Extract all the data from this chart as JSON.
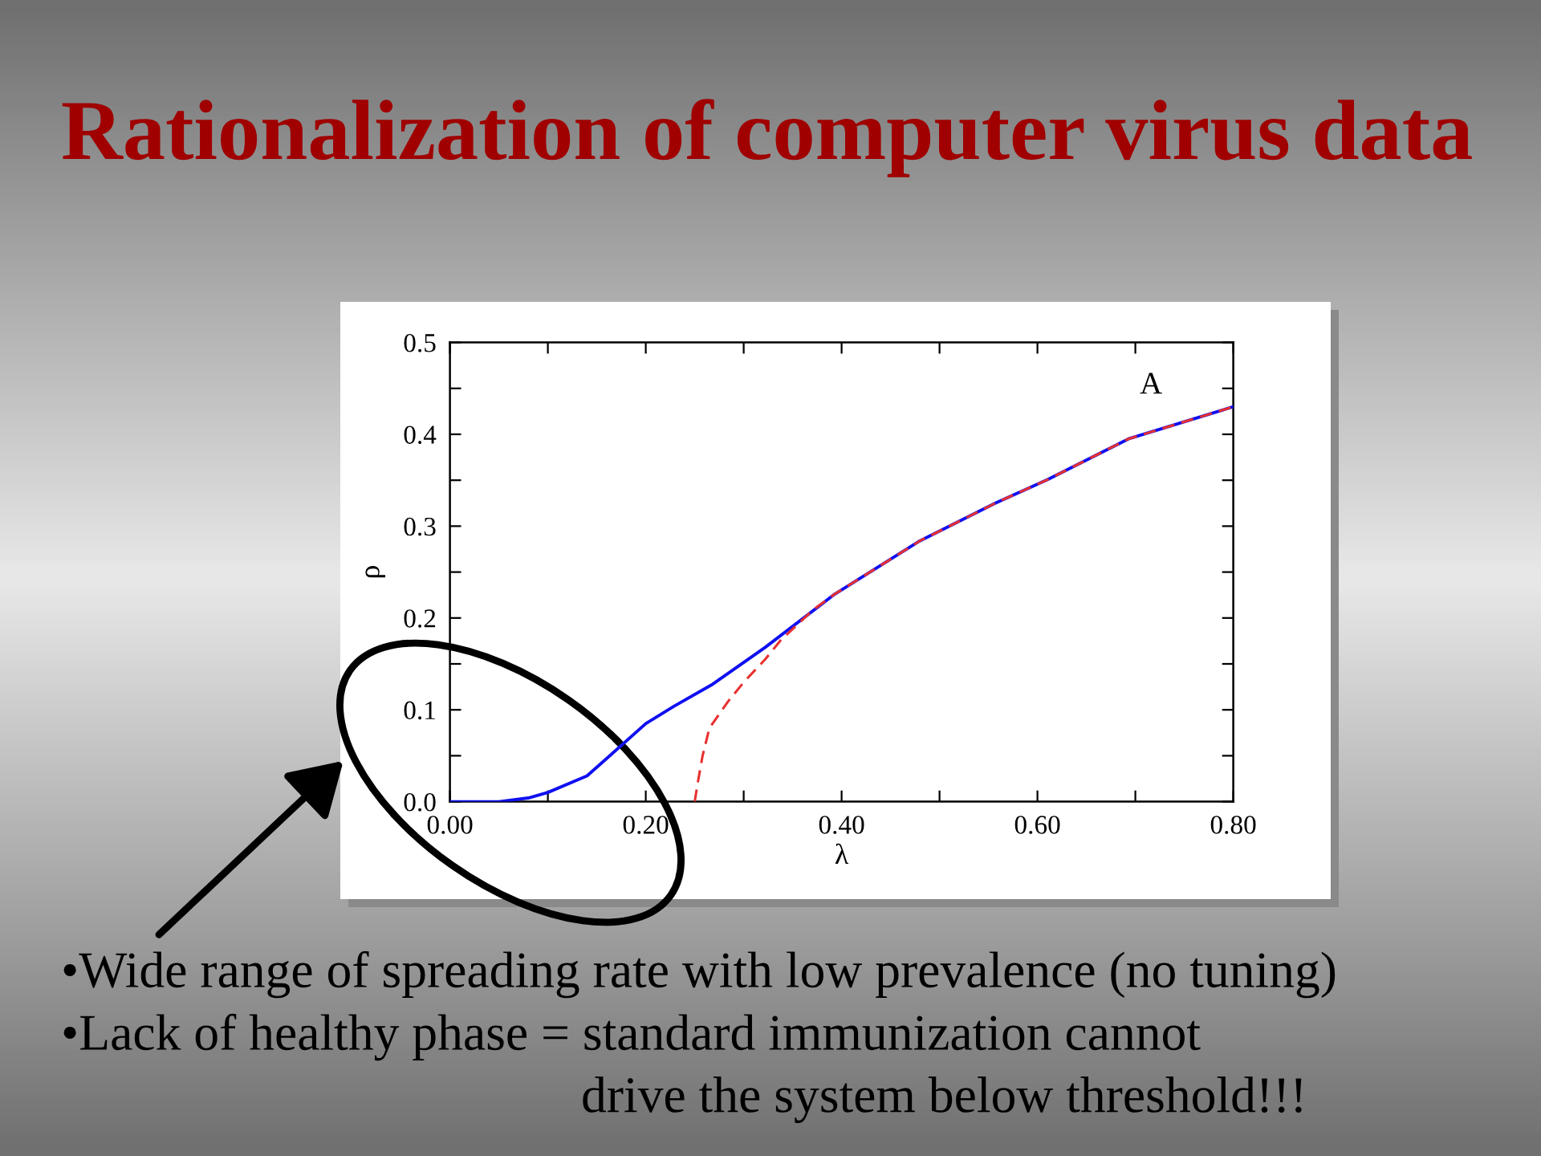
{
  "chart_data": {
    "type": "line",
    "title": "Rationalization of computer virus data",
    "xlabel": "λ",
    "ylabel": "ρ",
    "annotations": [
      "A",
      "•Wide range of spreading rate with low prevalence (no tuning)",
      "•Lack of healthy phase = standard immunization cannot",
      "drive the system below threshold!!!"
    ],
    "series": [
      {
        "color": "#1010f0",
        "line_style": "solid",
        "x": [
          0.0,
          0.05,
          0.08,
          0.1,
          0.14,
          0.2,
          0.229,
          0.267,
          0.322,
          0.393,
          0.48,
          0.557,
          0.611,
          0.693,
          0.8
        ],
        "values": [
          0.0,
          0.0,
          0.004,
          0.01,
          0.028,
          0.085,
          0.104,
          0.127,
          0.168,
          0.226,
          0.284,
          0.325,
          0.351,
          0.395,
          0.43
        ]
      },
      {
        "color": "#e83030",
        "line_style": "dashed",
        "x": [
          0.25,
          0.253,
          0.258,
          0.265,
          0.284,
          0.3,
          0.322,
          0.338,
          0.371,
          0.393,
          0.48,
          0.557,
          0.611,
          0.693,
          0.8
        ],
        "values": [
          0.0,
          0.02,
          0.05,
          0.08,
          0.109,
          0.13,
          0.155,
          0.176,
          0.209,
          0.226,
          0.284,
          0.325,
          0.351,
          0.395,
          0.43
        ]
      }
    ],
    "xlim": [
      0.0,
      0.8
    ],
    "xticks": [
      {
        "value": 0.0,
        "label": "0.00"
      },
      {
        "value": 0.1,
        "label": null
      },
      {
        "value": 0.2,
        "label": "0.20"
      },
      {
        "value": 0.3,
        "label": null
      },
      {
        "value": 0.4,
        "label": "0.40"
      },
      {
        "value": 0.5,
        "label": null
      },
      {
        "value": 0.6,
        "label": "0.60"
      },
      {
        "value": 0.7,
        "label": null
      },
      {
        "value": 0.8,
        "label": "0.80"
      }
    ],
    "ylim": [
      0.0,
      0.5
    ],
    "yticks": [
      {
        "value": 0.0,
        "label": "0.0"
      },
      {
        "value": 0.05,
        "label": null
      },
      {
        "value": 0.1,
        "label": "0.1"
      },
      {
        "value": 0.15,
        "label": null
      },
      {
        "value": 0.2,
        "label": "0.2"
      },
      {
        "value": 0.25,
        "label": null
      },
      {
        "value": 0.3,
        "label": "0.3"
      },
      {
        "value": 0.35,
        "label": null
      },
      {
        "value": 0.4,
        "label": "0.4"
      },
      {
        "value": 0.45,
        "label": null
      },
      {
        "value": 0.5,
        "label": "0.5"
      }
    ]
  }
}
